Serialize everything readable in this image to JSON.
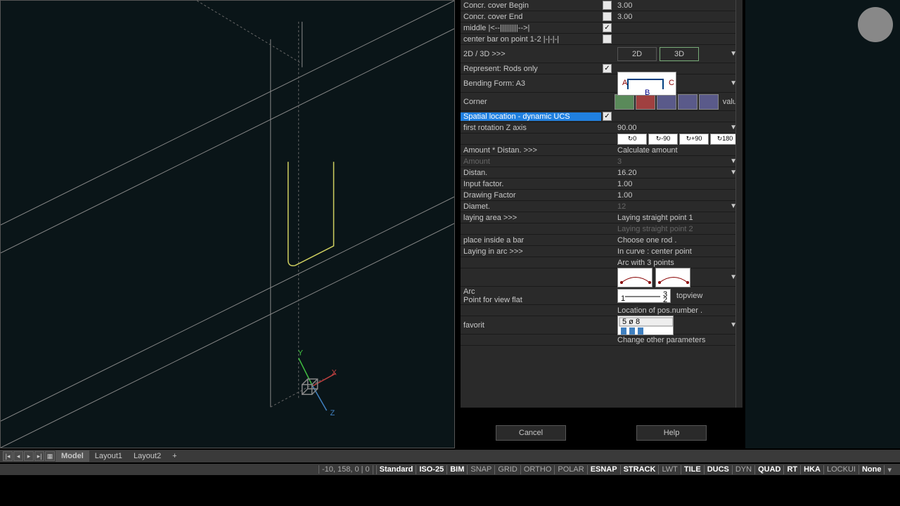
{
  "viewport": {
    "bg": "#0a1518",
    "wire_color": "#888888",
    "dash_color": "#666666",
    "rebar_color": "#d0d060",
    "axis_x_color": "#c04040",
    "axis_y_color": "#40c040",
    "axis_z_color": "#4080c0",
    "axis_labels": {
      "x": "X",
      "y": "Y",
      "z": "Z"
    }
  },
  "panel": {
    "rows": [
      {
        "label": "Concr. cover Begin",
        "check": false,
        "val": "3.00"
      },
      {
        "label": "Concr. cover End",
        "check": false,
        "val": "3.00"
      },
      {
        "label": "middle    |<--|||||||||-->|",
        "check": true,
        "val": ""
      },
      {
        "label": "center bar on point 1-2 |-|-|-|",
        "check": false,
        "val": ""
      }
    ],
    "mode_label": "2D / 3D  >>>",
    "btn_2d": "2D",
    "btn_3d": "3D",
    "represent": {
      "label": "Represent:  Rods only",
      "check": true
    },
    "bending": {
      "label": "Bending Form: A3",
      "a": "A",
      "b": "B",
      "c": "C"
    },
    "corner": {
      "label": "Corner",
      "value_label": "value"
    },
    "spatial": {
      "label": "Spatial location  - dynamic UCS",
      "check": true
    },
    "rotz": {
      "label": "first rotation Z axis",
      "val": "90.00"
    },
    "rot_btns": [
      "0",
      "-90",
      "+90",
      "180"
    ],
    "amount_hdr": {
      "label": "Amount   * Distan.   >>>",
      "val": "Calculate amount"
    },
    "amount": {
      "label": "Amount",
      "val": "3"
    },
    "distan": {
      "label": "Distan.",
      "val": "16.20"
    },
    "input_factor": {
      "label": "Input factor.",
      "val": "1.00"
    },
    "drawing_factor": {
      "label": "Drawing Factor",
      "val": "1.00"
    },
    "diamet": {
      "label": "Diamet.",
      "val": "12"
    },
    "laying": {
      "label": "laying area  >>>",
      "v1": "Laying straight point 1",
      "v2": "Laying straight point 2"
    },
    "place_inside": {
      "label": "place inside a bar",
      "val": "Choose one rod  ."
    },
    "laying_arc": {
      "label": "Laying in arc          >>>",
      "v1": "In curve : center point",
      "v2": "Arc with 3 points"
    },
    "arc": {
      "label": "Arc",
      "sub": "Point for view flat",
      "topview": "topview"
    },
    "pos_number": "Location of pos.number .",
    "favorit": "favorit",
    "change_params": "Change other parameters"
  },
  "dialog": {
    "cancel": "Cancel",
    "help": "Help"
  },
  "tabs": {
    "model": "Model",
    "l1": "Layout1",
    "l2": "Layout2"
  },
  "status": {
    "coords": "-10, 158, 0 | 0",
    "items": [
      "Standard",
      "ISO-25",
      "BIM",
      "SNAP",
      "GRID",
      "ORTHO",
      "POLAR",
      "ESNAP",
      "STRACK",
      "LWT",
      "TILE",
      "DUCS",
      "DYN",
      "QUAD",
      "RT",
      "HKA",
      "LOCKUI",
      "None"
    ],
    "on": [
      "Standard",
      "ISO-25",
      "BIM",
      "ESNAP",
      "STRACK",
      "TILE",
      "DUCS",
      "QUAD",
      "RT",
      "HKA",
      "None"
    ]
  },
  "colors": {
    "corner_btns": [
      "#5a8a5a",
      "#a04040",
      "#5a5a8a",
      "#5a5a8a",
      "#5a5a8a"
    ]
  }
}
